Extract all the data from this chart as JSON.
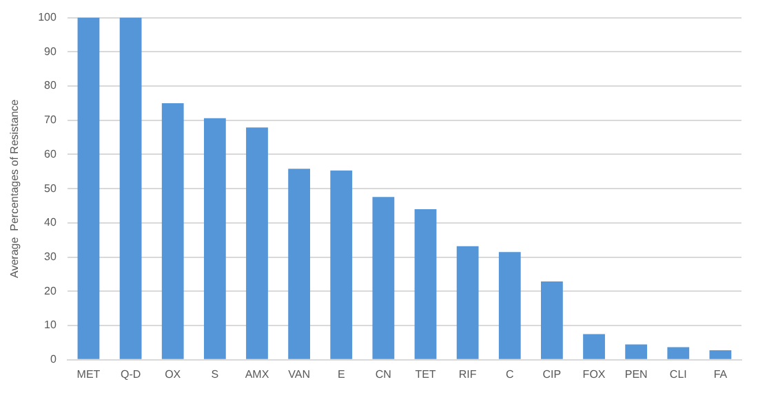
{
  "chart_data": {
    "type": "bar",
    "ylabel": "Average  Percentages of Resistance",
    "categories": [
      "MET",
      "Q-D",
      "OX",
      "S",
      "AMX",
      "VAN",
      "E",
      "CN",
      "TET",
      "RIF",
      "C",
      "CIP",
      "FOX",
      "PEN",
      "CLI",
      "FA"
    ],
    "values": [
      100,
      100,
      75,
      70.6,
      67.9,
      55.8,
      55.3,
      47.6,
      44,
      33.2,
      31.5,
      22.9,
      7.5,
      4.5,
      3.7,
      2.8
    ],
    "color": "#5596d8",
    "ylim": [
      0,
      100
    ],
    "yticks": [
      0,
      10,
      20,
      30,
      40,
      50,
      60,
      70,
      80,
      90,
      100
    ],
    "grid": "y",
    "legend": false
  }
}
